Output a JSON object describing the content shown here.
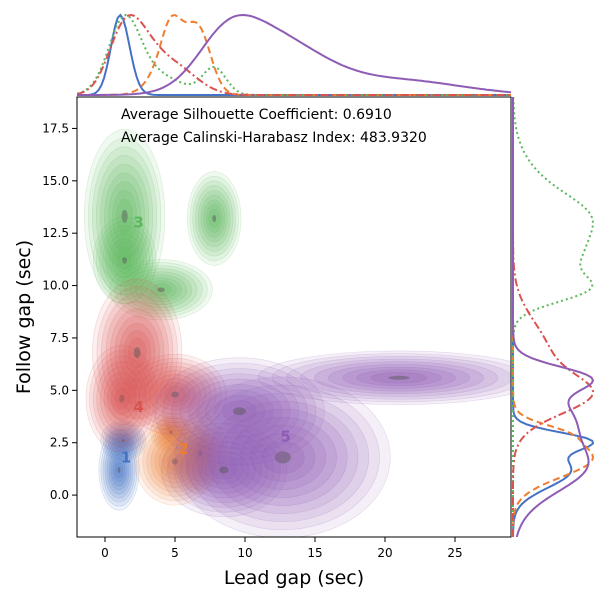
{
  "chart_data": {
    "type": "scatter",
    "subtype": "joint kde plot with marginal distributions",
    "xlabel": "Lead gap (sec)",
    "ylabel": "Follow gap (sec)",
    "xlim": [
      -2,
      29
    ],
    "ylim": [
      -2,
      19
    ],
    "xticks": [
      0,
      5,
      10,
      15,
      20,
      25
    ],
    "yticks": [
      0.0,
      2.5,
      5.0,
      7.5,
      10.0,
      12.5,
      15.0,
      17.5
    ],
    "x_tick_labels": [
      "0",
      "5",
      "10",
      "15",
      "20",
      "25"
    ],
    "y_tick_labels": [
      "0.0",
      "2.5",
      "5.0",
      "7.5",
      "10.0",
      "12.5",
      "15.0",
      "17.5"
    ],
    "annotations": [
      "Average Silhouette Coefficient: 0.6910",
      "Average Calinski-Harabasz Index: 483.9320"
    ],
    "clusters": [
      {
        "label": "1",
        "color": "#4472c4",
        "label_pos": [
          1.5,
          1.8
        ],
        "linestyle": "solid",
        "blobs": [
          [
            1.0,
            1.2,
            0.9,
            1.2
          ],
          [
            1.3,
            2.6,
            1.0,
            0.6
          ]
        ]
      },
      {
        "label": "2",
        "color": "#ed7d31",
        "label_pos": [
          5.6,
          2.2
        ],
        "linestyle": "dashed",
        "blobs": [
          [
            5.0,
            1.6,
            1.8,
            1.3
          ],
          [
            6.8,
            2.0,
            1.2,
            1.2
          ],
          [
            4.7,
            3.0,
            0.9,
            0.6
          ]
        ]
      },
      {
        "label": "3",
        "color": "#5cb85c",
        "label_pos": [
          2.4,
          13.0
        ],
        "linestyle": "dotted",
        "blobs": [
          [
            1.4,
            13.3,
            1.8,
            2.6
          ],
          [
            1.4,
            11.2,
            1.4,
            1.3
          ],
          [
            7.8,
            13.2,
            1.2,
            1.4
          ],
          [
            4.0,
            9.8,
            2.3,
            0.9
          ]
        ]
      },
      {
        "label": "4",
        "color": "#d9534f",
        "label_pos": [
          2.4,
          4.2
        ],
        "linestyle": "dashdot",
        "blobs": [
          [
            1.2,
            4.6,
            1.6,
            1.6
          ],
          [
            2.3,
            6.8,
            2.0,
            2.2
          ],
          [
            5.0,
            4.8,
            2.3,
            1.2
          ]
        ]
      },
      {
        "label": "5",
        "color": "#8e5bb5",
        "label_pos": [
          12.9,
          2.8
        ],
        "linestyle": "solid",
        "blobs": [
          [
            12.7,
            1.8,
            4.8,
            2.4
          ],
          [
            9.6,
            4.0,
            3.8,
            1.6
          ],
          [
            21.0,
            5.6,
            6.3,
            0.8
          ],
          [
            8.5,
            1.2,
            2.8,
            1.4
          ]
        ]
      }
    ],
    "grid": false,
    "legend": "none"
  }
}
